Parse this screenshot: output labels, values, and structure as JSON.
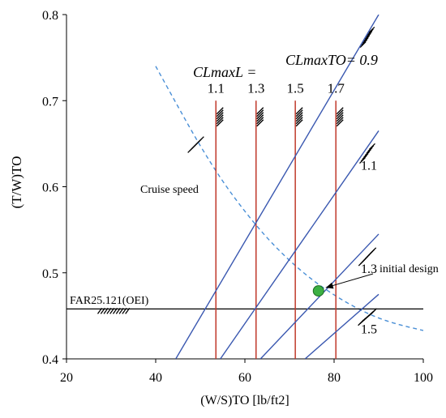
{
  "chart_data": {
    "type": "line",
    "xlabel": "(W/S)TO [lb/ft2]",
    "ylabel": "(T/W)TO",
    "xlim": [
      20,
      100
    ],
    "ylim": [
      0.4,
      0.8
    ],
    "xticks": [
      "20",
      "40",
      "60",
      "80",
      "100"
    ],
    "yticks": [
      "0.4",
      "0.5",
      "0.6",
      "0.7",
      "0.8"
    ],
    "grid": false,
    "landing_header": "CLmaxL =",
    "takeoff_header": "CLmaxTO= 0.9",
    "landing_limits": [
      {
        "label": "1.1",
        "x": 53.5
      },
      {
        "label": "1.3",
        "x": 62.5
      },
      {
        "label": "1.5",
        "x": 71.3
      },
      {
        "label": "1.7",
        "x": 80.4
      }
    ],
    "takeoff_lines": [
      {
        "label": "0.9",
        "x_start": 44.5,
        "y_start": 0.4,
        "x_end": 90,
        "y_end": 0.8
      },
      {
        "label": "1.1",
        "x_start": 54.5,
        "y_start": 0.4,
        "x_end": 90,
        "y_end": 0.665
      },
      {
        "label": "1.3",
        "x_start": 63.5,
        "y_start": 0.4,
        "x_end": 90,
        "y_end": 0.545
      },
      {
        "label": "1.5",
        "x_start": 73.5,
        "y_start": 0.4,
        "x_end": 90,
        "y_end": 0.475
      }
    ],
    "oei_limit": {
      "label": "FAR25.121(OEI)",
      "y": 0.458
    },
    "cruise_curve": {
      "label": "Cruise speed",
      "x": [
        40,
        45,
        50,
        55,
        60,
        65,
        70,
        75,
        80,
        85,
        90,
        95,
        100
      ],
      "y": [
        0.74,
        0.693,
        0.647,
        0.606,
        0.571,
        0.54,
        0.514,
        0.492,
        0.474,
        0.459,
        0.447,
        0.439,
        0.433
      ]
    },
    "design_point": {
      "label": "initial design",
      "x": 76.5,
      "y": 0.479
    },
    "colors": {
      "landing": "#c0392b",
      "takeoff": "#3a58b0",
      "cruise": "#4a8fd6",
      "oei": "#000000",
      "design": "#3cb043"
    }
  }
}
